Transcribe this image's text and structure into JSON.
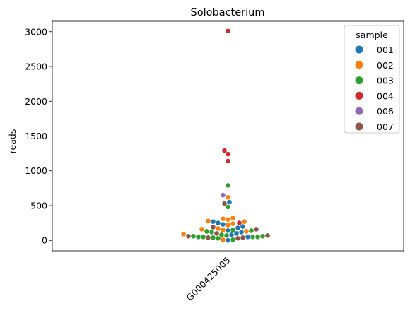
{
  "chart_data": {
    "type": "scatter",
    "subtype": "swarm",
    "title": "Solobacterium",
    "xlabel": "",
    "ylabel": "reads",
    "categories": [
      "G000425005"
    ],
    "ylim": [
      -150,
      3150
    ],
    "yticks": [
      0,
      500,
      1000,
      1500,
      2000,
      2500,
      3000
    ],
    "grid": false,
    "legend": {
      "title": "sample",
      "placement": "top-right"
    },
    "series": [
      {
        "name": "001",
        "color": "#1f77b4",
        "values": [
          0,
          50,
          80,
          100,
          120,
          140,
          180,
          200,
          230,
          250,
          270,
          550
        ]
      },
      {
        "name": "002",
        "color": "#ff7f0e",
        "values": [
          10,
          90,
          130,
          150,
          160,
          170,
          220,
          240,
          270,
          280,
          300,
          310,
          320,
          620
        ]
      },
      {
        "name": "003",
        "color": "#2ca02c",
        "values": [
          10,
          30,
          40,
          50,
          50,
          50,
          50,
          60,
          60,
          70,
          80,
          120,
          130,
          140,
          150,
          480,
          790
        ]
      },
      {
        "name": "004",
        "color": "#d62728",
        "values": [
          250,
          1140,
          1240,
          1290,
          3010
        ]
      },
      {
        "name": "006",
        "color": "#9467bd",
        "values": [
          650
        ]
      },
      {
        "name": "007",
        "color": "#8c564b",
        "values": [
          30,
          40,
          40,
          60,
          70,
          100,
          160,
          190,
          530
        ]
      }
    ]
  }
}
